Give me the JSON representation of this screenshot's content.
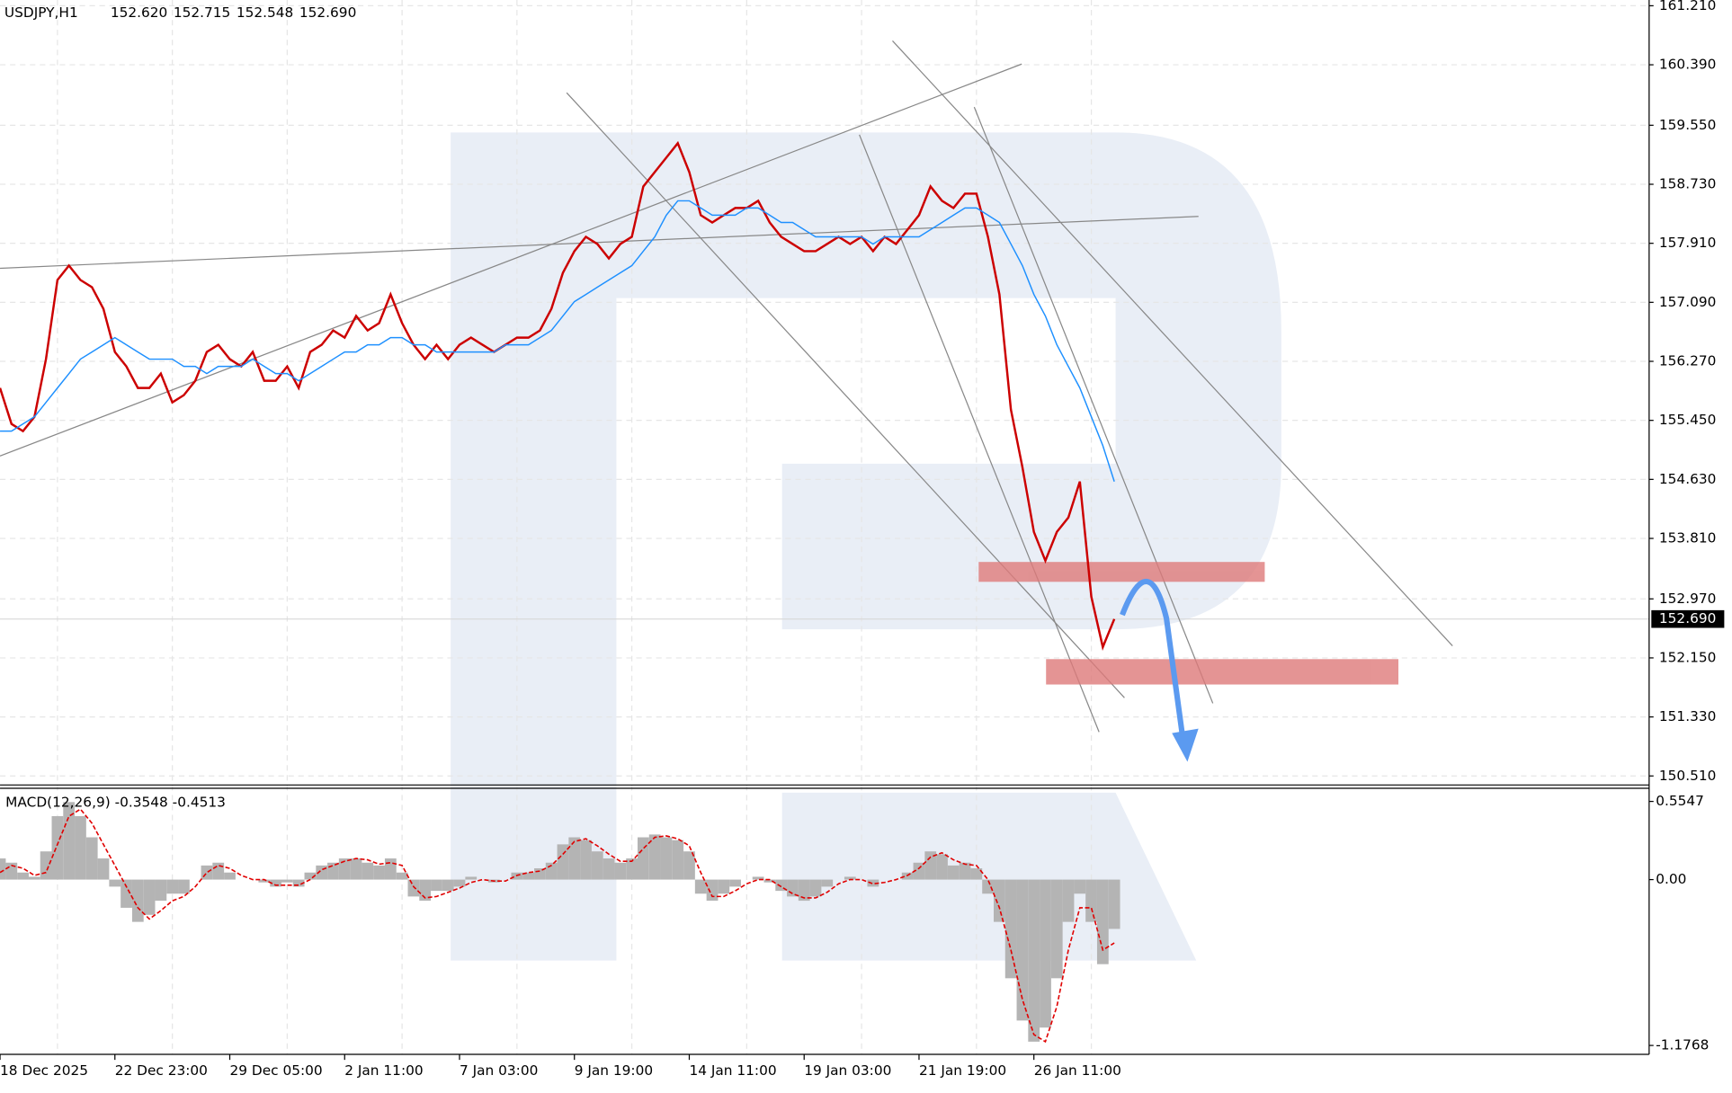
{
  "chart_data": {
    "type": "line",
    "header": {
      "symbol": "USDJPY,H1",
      "open": "152.620",
      "high": "152.715",
      "low": "152.548",
      "close": "152.690"
    },
    "categories": [
      "18 Dec 2025",
      null,
      null,
      null,
      null,
      null,
      null,
      null,
      null,
      null,
      "22 Dec 23:00",
      null,
      null,
      null,
      null,
      null,
      null,
      null,
      null,
      null,
      "29 Dec 05:00",
      null,
      null,
      null,
      null,
      null,
      null,
      null,
      null,
      null,
      "2 Jan 11:00",
      null,
      null,
      null,
      null,
      null,
      null,
      null,
      null,
      null,
      "7 Jan 03:00",
      null,
      null,
      null,
      null,
      null,
      null,
      null,
      null,
      null,
      "9 Jan 19:00",
      null,
      null,
      null,
      null,
      null,
      null,
      null,
      null,
      null,
      "14 Jan 11:00",
      null,
      null,
      null,
      null,
      null,
      null,
      null,
      null,
      null,
      "19 Jan 03:00",
      null,
      null,
      null,
      null,
      null,
      null,
      null,
      null,
      null,
      "21 Jan 19:00",
      null,
      null,
      null,
      null,
      null,
      null,
      null,
      null,
      null,
      "26 Jan 11:00",
      null,
      null,
      null,
      null,
      null,
      null,
      null
    ],
    "series": [
      {
        "color": "#cc0000",
        "values": [
          155.9,
          155.4,
          155.3,
          155.5,
          156.3,
          157.4,
          157.6,
          157.4,
          157.3,
          157.0,
          156.4,
          156.2,
          155.9,
          155.9,
          156.1,
          155.7,
          155.8,
          156.0,
          156.4,
          156.5,
          156.3,
          156.2,
          156.4,
          156.0,
          156.0,
          156.2,
          155.9,
          156.4,
          156.5,
          156.7,
          156.6,
          156.9,
          156.7,
          156.8,
          157.2,
          156.8,
          156.5,
          156.3,
          156.5,
          156.3,
          156.5,
          156.6,
          156.5,
          156.4,
          156.5,
          156.6,
          156.6,
          156.7,
          157.0,
          157.5,
          157.8,
          158.0,
          157.9,
          157.7,
          157.9,
          158.0,
          158.7,
          158.9,
          159.1,
          159.3,
          158.9,
          158.3,
          158.2,
          158.3,
          158.4,
          158.4,
          158.5,
          158.2,
          158.0,
          157.9,
          157.8,
          157.8,
          157.9,
          158.0,
          157.9,
          158.0,
          157.8,
          158.0,
          157.9,
          158.1,
          158.3,
          158.7,
          158.5,
          158.4,
          158.6,
          158.6,
          158.0,
          157.2,
          155.6,
          154.8,
          153.9,
          153.5,
          153.9,
          154.1,
          154.6,
          153.0,
          152.3,
          152.69
        ]
      },
      {
        "color": "#1e90ff",
        "values": [
          155.3,
          155.3,
          155.4,
          155.5,
          155.7,
          155.9,
          156.1,
          156.3,
          156.4,
          156.5,
          156.6,
          156.5,
          156.4,
          156.3,
          156.3,
          156.3,
          156.2,
          156.2,
          156.1,
          156.2,
          156.2,
          156.2,
          156.3,
          156.2,
          156.1,
          156.1,
          156.0,
          156.1,
          156.2,
          156.3,
          156.4,
          156.4,
          156.5,
          156.5,
          156.6,
          156.6,
          156.5,
          156.5,
          156.4,
          156.4,
          156.4,
          156.4,
          156.4,
          156.4,
          156.5,
          156.5,
          156.5,
          156.6,
          156.7,
          156.9,
          157.1,
          157.2,
          157.3,
          157.4,
          157.5,
          157.6,
          157.8,
          158.0,
          158.3,
          158.5,
          158.5,
          158.4,
          158.3,
          158.3,
          158.3,
          158.4,
          158.4,
          158.3,
          158.2,
          158.2,
          158.1,
          158.0,
          158.0,
          158.0,
          158.0,
          158.0,
          157.9,
          158.0,
          158.0,
          158.0,
          158.0,
          158.1,
          158.2,
          158.3,
          158.4,
          158.4,
          158.3,
          158.2,
          157.9,
          157.6,
          157.2,
          156.9,
          156.5,
          156.2,
          155.9,
          155.5,
          155.1,
          154.6
        ]
      }
    ],
    "ylim": [
      150.4,
      161.29
    ],
    "yticks": [
      {
        "value": 161.21,
        "label": "161.210"
      },
      {
        "value": 160.39,
        "label": "160.390"
      },
      {
        "value": 159.55,
        "label": "159.550"
      },
      {
        "value": 158.73,
        "label": "158.730"
      },
      {
        "value": 157.91,
        "label": "157.910"
      },
      {
        "value": 157.09,
        "label": "157.090"
      },
      {
        "value": 156.27,
        "label": "156.270"
      },
      {
        "value": 155.45,
        "label": "155.450"
      },
      {
        "value": 154.63,
        "label": "154.630"
      },
      {
        "value": 153.81,
        "label": "153.810"
      },
      {
        "value": 152.97,
        "label": "152.970"
      },
      {
        "value": 152.15,
        "label": "152.150"
      },
      {
        "value": 151.33,
        "label": "151.330"
      },
      {
        "value": 150.51,
        "label": "150.510"
      }
    ],
    "last_price": {
      "value": 152.69,
      "label": "152.690"
    },
    "grid": true,
    "macd": {
      "title": "MACD(12,26,9) -0.3548 -0.4513",
      "color": "#b4b4b4",
      "signal_color": "#e00000",
      "values": [
        0.15,
        0.12,
        0.05,
        0.02,
        0.2,
        0.45,
        0.55,
        0.45,
        0.3,
        0.15,
        -0.05,
        -0.2,
        -0.3,
        -0.25,
        -0.15,
        -0.1,
        -0.1,
        0.0,
        0.1,
        0.12,
        0.05,
        0.0,
        0.0,
        -0.02,
        -0.05,
        -0.02,
        -0.05,
        0.05,
        0.1,
        0.12,
        0.15,
        0.15,
        0.12,
        0.1,
        0.15,
        0.05,
        -0.12,
        -0.15,
        -0.08,
        -0.08,
        -0.05,
        0.02,
        0.0,
        -0.02,
        0.0,
        0.05,
        0.05,
        0.08,
        0.12,
        0.25,
        0.3,
        0.28,
        0.2,
        0.15,
        0.12,
        0.15,
        0.3,
        0.32,
        0.3,
        0.28,
        0.2,
        -0.1,
        -0.15,
        -0.1,
        -0.05,
        0.0,
        0.02,
        -0.02,
        -0.08,
        -0.12,
        -0.15,
        -0.12,
        -0.05,
        0.0,
        0.02,
        0.0,
        -0.05,
        0.0,
        0.0,
        0.05,
        0.12,
        0.2,
        0.18,
        0.1,
        0.12,
        0.08,
        -0.1,
        -0.3,
        -0.7,
        -1.0,
        -1.15,
        -1.05,
        -0.7,
        -0.3,
        -0.1,
        -0.3,
        -0.6,
        -0.35
      ],
      "signal": [
        0.05,
        0.1,
        0.08,
        0.03,
        0.05,
        0.25,
        0.45,
        0.5,
        0.4,
        0.25,
        0.1,
        -0.05,
        -0.2,
        -0.28,
        -0.22,
        -0.15,
        -0.12,
        -0.05,
        0.05,
        0.1,
        0.08,
        0.03,
        0.0,
        0.0,
        -0.04,
        -0.04,
        -0.04,
        0.0,
        0.07,
        0.1,
        0.13,
        0.15,
        0.14,
        0.11,
        0.12,
        0.1,
        -0.05,
        -0.13,
        -0.12,
        -0.09,
        -0.06,
        -0.02,
        0.0,
        -0.01,
        -0.01,
        0.03,
        0.05,
        0.06,
        0.1,
        0.18,
        0.27,
        0.29,
        0.24,
        0.18,
        0.13,
        0.13,
        0.22,
        0.3,
        0.31,
        0.29,
        0.24,
        0.05,
        -0.12,
        -0.12,
        -0.08,
        -0.03,
        0.0,
        0.0,
        -0.05,
        -0.1,
        -0.13,
        -0.13,
        -0.09,
        -0.03,
        0.0,
        0.0,
        -0.03,
        -0.02,
        0.0,
        0.03,
        0.08,
        0.16,
        0.19,
        0.14,
        0.11,
        0.1,
        0.0,
        -0.2,
        -0.5,
        -0.85,
        -1.1,
        -1.15,
        -0.9,
        -0.5,
        -0.2,
        -0.2,
        -0.5,
        -0.45
      ],
      "ylim": [
        -1.24,
        0.64
      ],
      "yticks": [
        {
          "value": 0.5547,
          "label": "0.5547"
        },
        {
          "value": 0,
          "label": "0.00"
        },
        {
          "value": -1.1768,
          "label": "-1.1768"
        }
      ]
    }
  }
}
